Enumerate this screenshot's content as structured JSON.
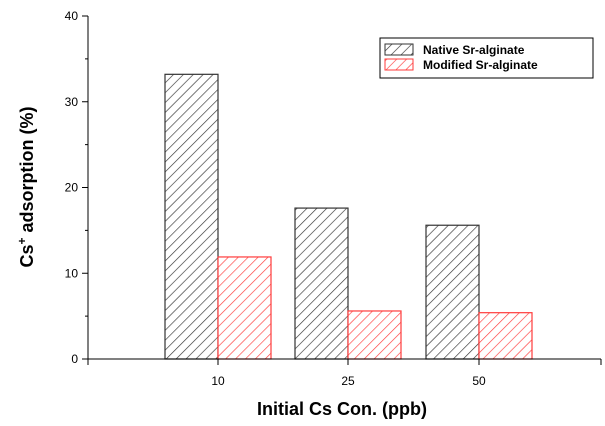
{
  "chart_data": {
    "type": "bar",
    "categories": [
      "10",
      "25",
      "50"
    ],
    "series": [
      {
        "name": "Native Sr-alginate",
        "values": [
          33.2,
          17.6,
          15.6
        ],
        "color": "#333333",
        "pattern": "diagonal-hatch"
      },
      {
        "name": "Modified Sr-alginate",
        "values": [
          11.9,
          5.6,
          5.4
        ],
        "color": "#ff3b3b",
        "pattern": "diagonal-hatch"
      }
    ],
    "xlabel": "Initial Cs Con. (ppb)",
    "ylabel": {
      "main": "Cs",
      "sup": "+",
      "rest": " adsorption (%)"
    },
    "ylim": [
      0,
      40
    ],
    "yticks": [
      "0",
      "10",
      "20",
      "30",
      "40"
    ],
    "grid": false,
    "legend_position": "top-right"
  }
}
